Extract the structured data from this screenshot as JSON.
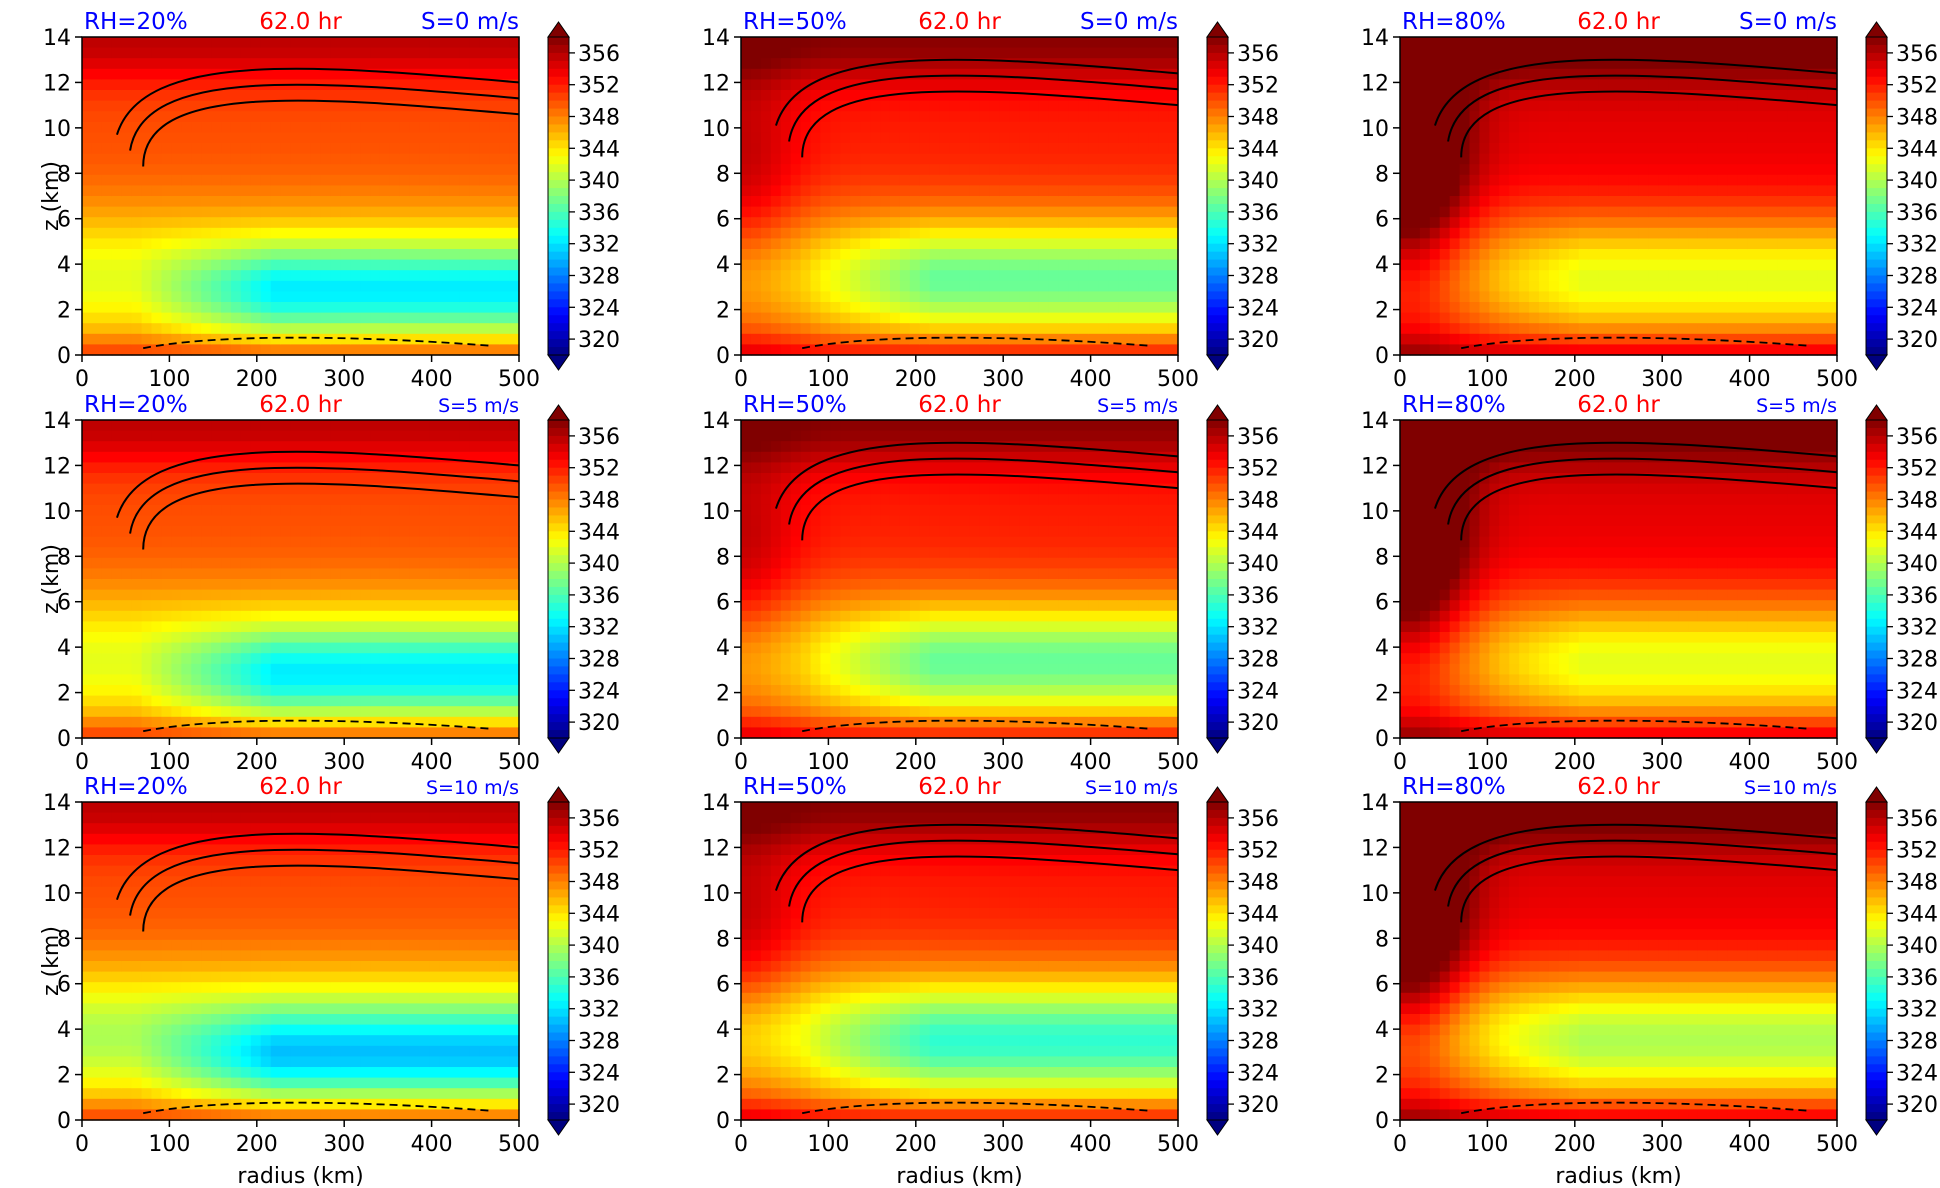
{
  "figure": {
    "title_colors": {
      "rh": "#0000ff",
      "time": "#ff0000",
      "shear": "#0000ff"
    },
    "xlabel": "radius (km)",
    "ylabel": "z (km)",
    "xticks": [
      0,
      100,
      200,
      300,
      400,
      500
    ],
    "yticks": [
      0,
      2,
      4,
      6,
      8,
      10,
      12,
      14
    ],
    "colorbar": {
      "ticks": [
        320,
        324,
        328,
        332,
        336,
        340,
        344,
        348,
        352,
        356
      ],
      "range": [
        318,
        358
      ],
      "colormap": "jet",
      "extend": "both"
    }
  },
  "chart_data": [
    {
      "type": "heatmap",
      "rh": "RH=20%",
      "time": "62.0 hr",
      "shear": "S=0 m/s",
      "pattern": "dry",
      "shear_value": 0,
      "xlim": [
        0,
        500
      ],
      "ylim": [
        0,
        14
      ]
    },
    {
      "type": "heatmap",
      "rh": "RH=50%",
      "time": "62.0 hr",
      "shear": "S=0 m/s",
      "pattern": "mid",
      "shear_value": 0,
      "xlim": [
        0,
        500
      ],
      "ylim": [
        0,
        14
      ]
    },
    {
      "type": "heatmap",
      "rh": "RH=80%",
      "time": "62.0 hr",
      "shear": "S=0 m/s",
      "pattern": "moist",
      "shear_value": 0,
      "xlim": [
        0,
        500
      ],
      "ylim": [
        0,
        14
      ]
    },
    {
      "type": "heatmap",
      "rh": "RH=20%",
      "time": "62.0 hr",
      "shear": "S=5 m/s",
      "pattern": "dry",
      "shear_value": 5,
      "xlim": [
        0,
        500
      ],
      "ylim": [
        0,
        14
      ]
    },
    {
      "type": "heatmap",
      "rh": "RH=50%",
      "time": "62.0 hr",
      "shear": "S=5 m/s",
      "pattern": "mid",
      "shear_value": 5,
      "xlim": [
        0,
        500
      ],
      "ylim": [
        0,
        14
      ]
    },
    {
      "type": "heatmap",
      "rh": "RH=80%",
      "time": "62.0 hr",
      "shear": "S=5 m/s",
      "pattern": "moist",
      "shear_value": 5,
      "xlim": [
        0,
        500
      ],
      "ylim": [
        0,
        14
      ]
    },
    {
      "type": "heatmap",
      "rh": "RH=20%",
      "time": "62.0 hr",
      "shear": "S=10 m/s",
      "pattern": "dry",
      "shear_value": 10,
      "xlim": [
        0,
        500
      ],
      "ylim": [
        0,
        14
      ]
    },
    {
      "type": "heatmap",
      "rh": "RH=50%",
      "time": "62.0 hr",
      "shear": "S=10 m/s",
      "pattern": "mid",
      "shear_value": 10,
      "xlim": [
        0,
        500
      ],
      "ylim": [
        0,
        14
      ]
    },
    {
      "type": "heatmap",
      "rh": "RH=80%",
      "time": "62.0 hr",
      "shear": "S=10 m/s",
      "pattern": "moist",
      "shear_value": 10,
      "xlim": [
        0,
        500
      ],
      "ylim": [
        0,
        14
      ]
    }
  ]
}
